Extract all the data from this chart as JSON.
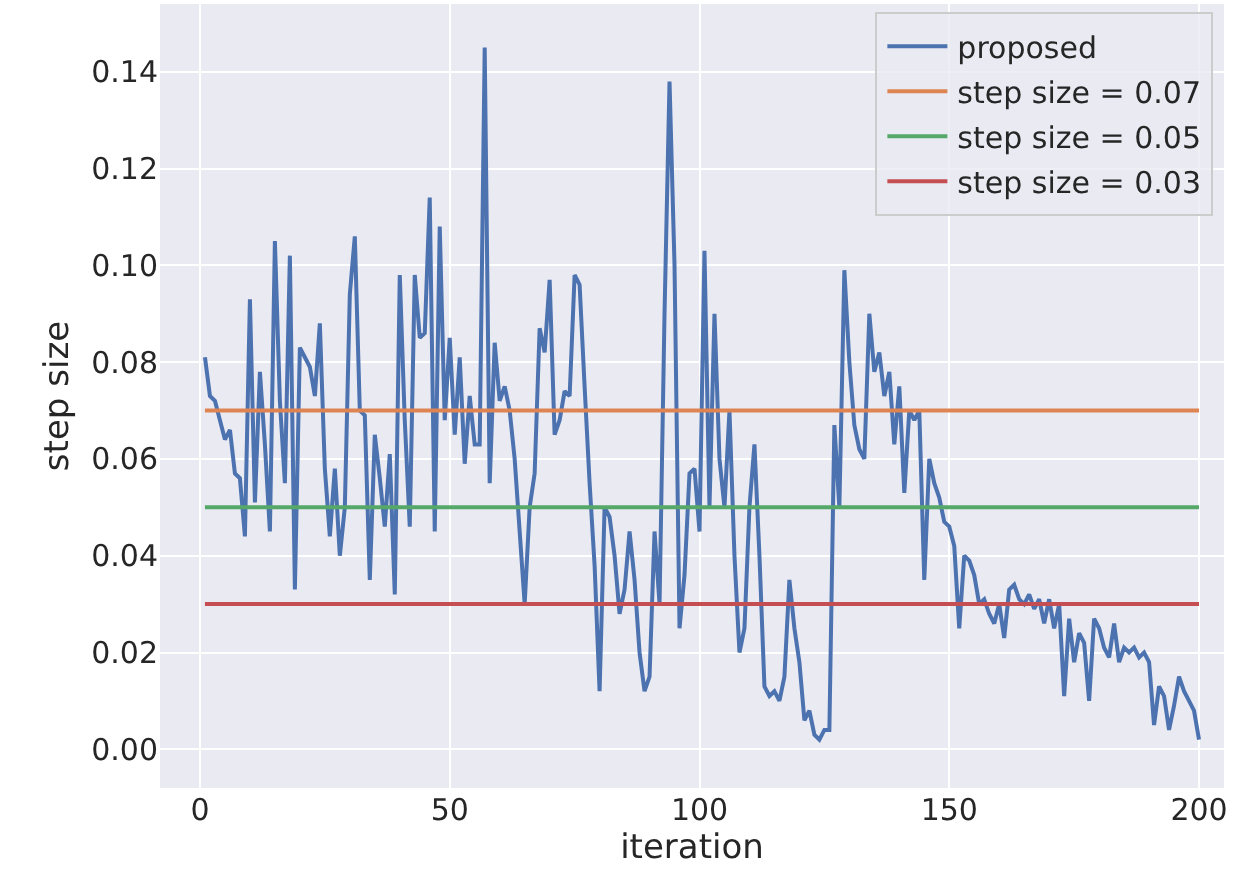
{
  "chart_data": {
    "type": "line",
    "xlabel": "iteration",
    "ylabel": "step size",
    "xlim": [
      -8,
      205
    ],
    "ylim": [
      -0.008,
      0.154
    ],
    "xticks": [
      0,
      50,
      100,
      150,
      200
    ],
    "yticks": [
      {
        "value": 0,
        "label": "0.00"
      },
      {
        "value": 0.02,
        "label": "0.02"
      },
      {
        "value": 0.04,
        "label": "0.04"
      },
      {
        "value": 0.06,
        "label": "0.06"
      },
      {
        "value": 0.08,
        "label": "0.08"
      },
      {
        "value": 0.1,
        "label": "0.10"
      },
      {
        "value": 0.12,
        "label": "0.12"
      },
      {
        "value": 0.14,
        "label": "0.14"
      }
    ],
    "grid": true,
    "legend": "top right",
    "marker": "none",
    "line_style": "solid",
    "series": [
      {
        "name": "proposed",
        "color": "#4c72b0",
        "x": [
          1,
          2,
          3,
          4,
          5,
          6,
          7,
          8,
          9,
          10,
          11,
          12,
          13,
          14,
          15,
          16,
          17,
          18,
          19,
          20,
          21,
          22,
          23,
          24,
          25,
          26,
          27,
          28,
          29,
          30,
          31,
          32,
          33,
          34,
          35,
          36,
          37,
          38,
          39,
          40,
          41,
          42,
          43,
          44,
          45,
          46,
          47,
          48,
          49,
          50,
          51,
          52,
          53,
          54,
          55,
          56,
          57,
          58,
          59,
          60,
          61,
          62,
          63,
          64,
          65,
          66,
          67,
          68,
          69,
          70,
          71,
          72,
          73,
          74,
          75,
          76,
          77,
          78,
          79,
          80,
          81,
          82,
          83,
          84,
          85,
          86,
          87,
          88,
          89,
          90,
          91,
          92,
          93,
          94,
          95,
          96,
          97,
          98,
          99,
          100,
          101,
          102,
          103,
          104,
          105,
          106,
          107,
          108,
          109,
          110,
          111,
          112,
          113,
          114,
          115,
          116,
          117,
          118,
          119,
          120,
          121,
          122,
          123,
          124,
          125,
          126,
          127,
          128,
          129,
          130,
          131,
          132,
          133,
          134,
          135,
          136,
          137,
          138,
          139,
          140,
          141,
          142,
          143,
          144,
          145,
          146,
          147,
          148,
          149,
          150,
          151,
          152,
          153,
          154,
          155,
          156,
          157,
          158,
          159,
          160,
          161,
          162,
          163,
          164,
          165,
          166,
          167,
          168,
          169,
          170,
          171,
          172,
          173,
          174,
          175,
          176,
          177,
          178,
          179,
          180,
          181,
          182,
          183,
          184,
          185,
          186,
          187,
          188,
          189,
          190,
          191,
          192,
          193,
          194,
          195,
          196,
          197,
          198,
          199,
          200
        ],
        "values": [
          0.081,
          0.073,
          0.072,
          0.068,
          0.064,
          0.066,
          0.057,
          0.056,
          0.044,
          0.093,
          0.051,
          0.078,
          0.063,
          0.045,
          0.105,
          0.072,
          0.055,
          0.102,
          0.033,
          0.083,
          0.081,
          0.079,
          0.073,
          0.088,
          0.058,
          0.044,
          0.058,
          0.04,
          0.05,
          0.094,
          0.106,
          0.07,
          0.069,
          0.035,
          0.065,
          0.056,
          0.046,
          0.061,
          0.032,
          0.098,
          0.068,
          0.046,
          0.098,
          0.085,
          0.086,
          0.114,
          0.045,
          0.108,
          0.068,
          0.085,
          0.065,
          0.081,
          0.059,
          0.073,
          0.063,
          0.063,
          0.145,
          0.055,
          0.084,
          0.072,
          0.075,
          0.07,
          0.06,
          0.045,
          0.03,
          0.05,
          0.057,
          0.087,
          0.082,
          0.097,
          0.065,
          0.068,
          0.074,
          0.073,
          0.098,
          0.096,
          0.075,
          0.055,
          0.038,
          0.012,
          0.05,
          0.048,
          0.04,
          0.028,
          0.033,
          0.045,
          0.035,
          0.02,
          0.012,
          0.015,
          0.045,
          0.03,
          0.09,
          0.138,
          0.1,
          0.025,
          0.036,
          0.057,
          0.058,
          0.045,
          0.103,
          0.05,
          0.09,
          0.06,
          0.05,
          0.07,
          0.04,
          0.02,
          0.025,
          0.05,
          0.063,
          0.04,
          0.013,
          0.011,
          0.012,
          0.01,
          0.015,
          0.035,
          0.025,
          0.018,
          0.006,
          0.008,
          0.003,
          0.002,
          0.004,
          0.004,
          0.067,
          0.05,
          0.099,
          0.08,
          0.067,
          0.062,
          0.06,
          0.09,
          0.078,
          0.082,
          0.073,
          0.078,
          0.063,
          0.075,
          0.053,
          0.07,
          0.068,
          0.07,
          0.035,
          0.06,
          0.055,
          0.052,
          0.047,
          0.046,
          0.042,
          0.025,
          0.04,
          0.039,
          0.036,
          0.03,
          0.031,
          0.028,
          0.026,
          0.03,
          0.023,
          0.033,
          0.034,
          0.031,
          0.03,
          0.032,
          0.029,
          0.031,
          0.026,
          0.031,
          0.025,
          0.03,
          0.011,
          0.027,
          0.018,
          0.024,
          0.022,
          0.01,
          0.027,
          0.025,
          0.021,
          0.019,
          0.026,
          0.018,
          0.021,
          0.02,
          0.021,
          0.019,
          0.02,
          0.018,
          0.005,
          0.013,
          0.011,
          0.004,
          0.009,
          0.015,
          0.012,
          0.01,
          0.008,
          0.002
        ]
      },
      {
        "name": "step size = 0.07",
        "color": "#dd8452",
        "x": [
          1,
          200
        ],
        "values": [
          0.07,
          0.07
        ]
      },
      {
        "name": "step size = 0.05",
        "color": "#55a868",
        "x": [
          1,
          200
        ],
        "values": [
          0.05,
          0.05
        ]
      },
      {
        "name": "step size = 0.03",
        "color": "#c44e52",
        "x": [
          1,
          200
        ],
        "values": [
          0.03,
          0.03
        ]
      }
    ]
  }
}
